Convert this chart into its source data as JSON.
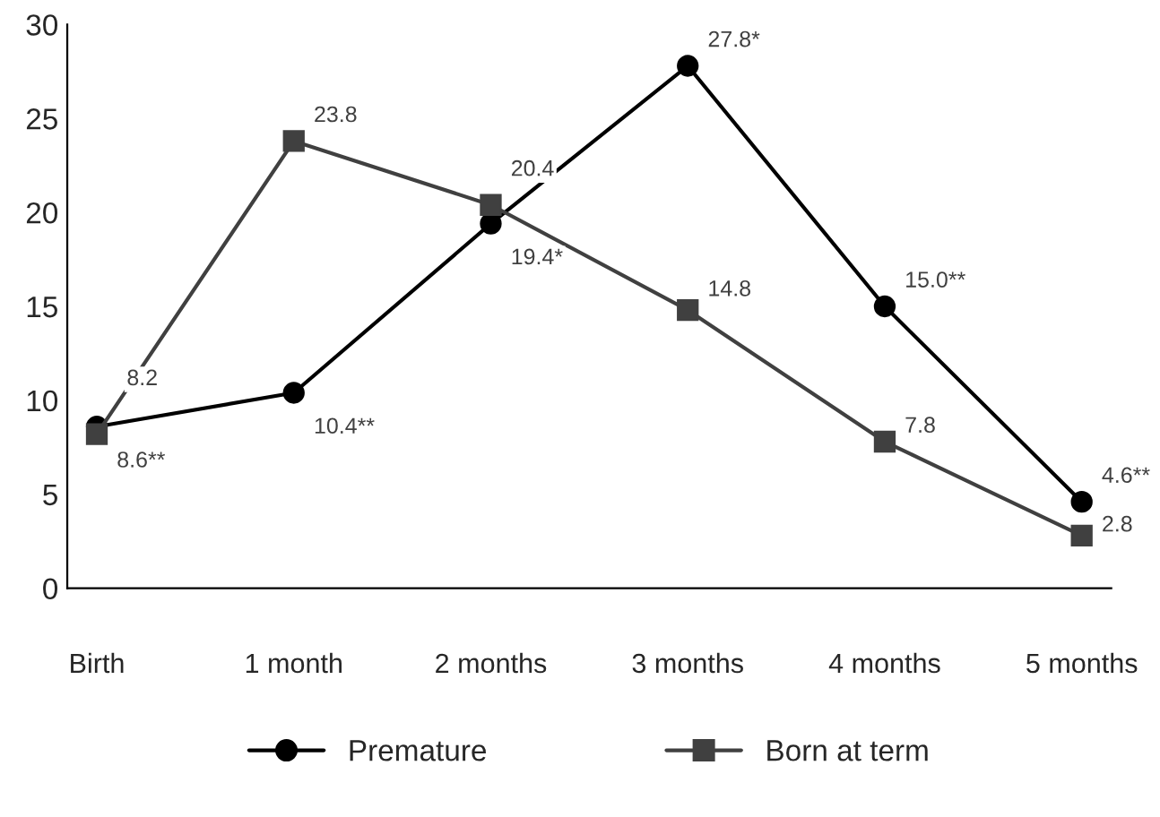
{
  "chart_data": {
    "type": "line",
    "categories": [
      "Birth",
      "1 month",
      "2 months",
      "3 months",
      "4 months",
      "5 months"
    ],
    "series": [
      {
        "name": "Premature",
        "color": "#000000",
        "marker": "circle",
        "values": [
          8.6,
          10.4,
          19.4,
          27.8,
          15.0,
          4.6
        ],
        "value_labels": [
          "8.6**",
          "10.4**",
          "19.4*",
          "27.8*",
          "15.0**",
          "4.6**"
        ]
      },
      {
        "name": "Born at term",
        "color": "#404040",
        "marker": "square",
        "values": [
          8.2,
          23.8,
          20.4,
          14.8,
          7.8,
          2.8
        ],
        "value_labels": [
          "8.2",
          "23.8",
          "20.4",
          "14.8",
          "7.8",
          "2.8"
        ]
      }
    ],
    "ylim": [
      0,
      30
    ],
    "yticks": [
      0,
      5,
      10,
      15,
      20,
      25,
      30
    ],
    "grid": false,
    "legend": "bottom",
    "line_style": "solid"
  }
}
